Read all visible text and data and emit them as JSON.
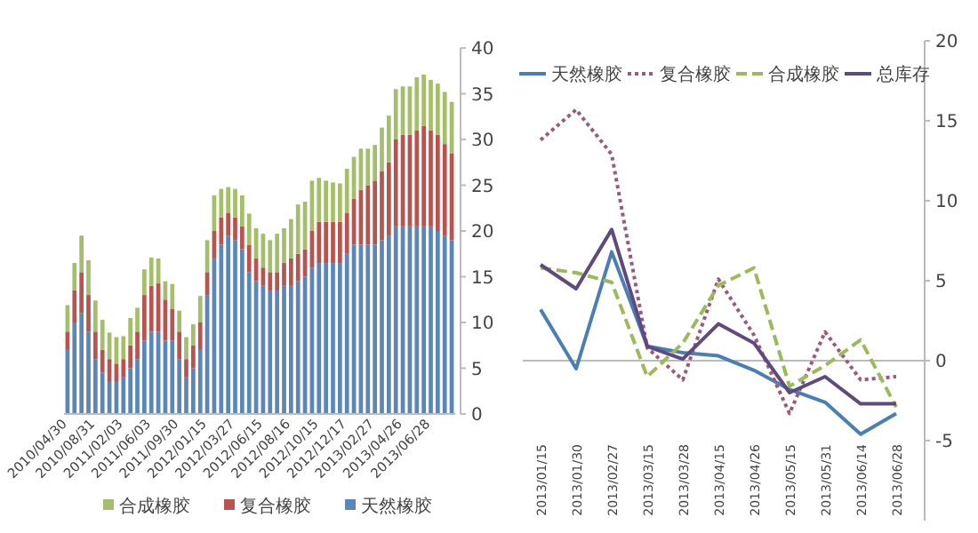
{
  "chart_data": [
    {
      "type": "bar",
      "stacked": true,
      "legend": "bottom",
      "grid": false,
      "categories": [
        "2010/04/30",
        null,
        null,
        null,
        "2010/08/31",
        null,
        null,
        null,
        "2011/02/03",
        null,
        null,
        null,
        "2011/06/03",
        null,
        null,
        null,
        "2011/09/30",
        null,
        null,
        null,
        "2012/01/15",
        null,
        null,
        null,
        "2012/03/27",
        null,
        null,
        null,
        "2012/06/15",
        null,
        null,
        null,
        "2012/08/16",
        null,
        null,
        null,
        "2012/10/15",
        null,
        null,
        null,
        "2012/12/17",
        null,
        null,
        null,
        "2013/02/27",
        null,
        null,
        null,
        "2013/04/26",
        null,
        null,
        null,
        "2013/06/28",
        null,
        null,
        null
      ],
      "series": [
        {
          "name": "天然橡胶",
          "color": "#5b86b8",
          "values": [
            7,
            10,
            11,
            9,
            6,
            4.5,
            3.5,
            3.5,
            4,
            5,
            6,
            8,
            9,
            9,
            8,
            8,
            6,
            4,
            5,
            7,
            13,
            17,
            18.5,
            19.5,
            19,
            18,
            15.5,
            14.5,
            14,
            13.5,
            13.5,
            14,
            14,
            14.5,
            15,
            16,
            16.5,
            16.5,
            16.5,
            16.5,
            17.5,
            18.5,
            18.5,
            18.5,
            18.5,
            19,
            19.5,
            20.5,
            20.5,
            20.5,
            20.5,
            20.5,
            20.5,
            20,
            19.5,
            19
          ]
        },
        {
          "name": "复合橡胶",
          "color": "#b85450",
          "values": [
            2,
            3.5,
            4.5,
            4,
            3,
            2.5,
            2.5,
            2,
            2,
            2.5,
            3,
            5,
            5,
            5.3,
            4.5,
            3.5,
            3,
            2,
            2.5,
            3,
            2.5,
            3,
            3,
            2.5,
            2.5,
            2.5,
            3,
            2.5,
            2,
            2,
            2,
            2.5,
            3,
            3,
            3,
            4,
            4.5,
            4.5,
            4.5,
            4.5,
            4.5,
            5,
            6,
            6.5,
            7,
            7.5,
            8,
            9.5,
            10,
            10,
            10.5,
            11,
            10.5,
            10.5,
            10,
            9.5
          ]
        },
        {
          "name": "合成橡胶",
          "color": "#a3bf6a",
          "values": [
            2.9,
            3,
            4,
            3.8,
            3.4,
            3.3,
            2.9,
            2.9,
            2.5,
            3,
            2.6,
            2.8,
            3.1,
            2.7,
            2,
            2.7,
            2.3,
            2.4,
            2.3,
            2.9,
            3.5,
            3.9,
            3.1,
            2.8,
            3.1,
            3.4,
            3.4,
            3.3,
            3.7,
            3.5,
            4.2,
            3.8,
            4.3,
            5.4,
            5.2,
            5.5,
            4.8,
            4.5,
            4.3,
            4.2,
            4.8,
            4.6,
            4.5,
            4,
            3.9,
            4.8,
            5.1,
            5.5,
            5.3,
            5.3,
            5.8,
            5.6,
            5.5,
            5.6,
            5.7,
            5.6
          ]
        }
      ],
      "ylim": [
        0,
        40
      ],
      "yticks": [
        0,
        5,
        10,
        15,
        20,
        25,
        30,
        35,
        40
      ]
    },
    {
      "type": "line",
      "legend": "top",
      "categories": [
        "2013/01/15",
        "2013/01/30",
        "2013/02/27",
        "2013/03/15",
        "2013/03/28",
        "2013/04/15",
        "2013/04/26",
        "2013/05/15",
        "2013/05/31",
        "2013/06/14",
        "2013/06/28"
      ],
      "series": [
        {
          "name": "天然橡胶",
          "color": "#4a7fb5",
          "line_style": "solid",
          "values": [
            3.2,
            -0.5,
            6.8,
            0.9,
            0.5,
            0.3,
            -0.6,
            -1.8,
            -2.6,
            -4.6,
            -3.3
          ]
        },
        {
          "name": "复合橡胶",
          "color": "#9c5a7a",
          "line_style": "dotted",
          "values": [
            13.8,
            15.7,
            12.9,
            0.8,
            -1.2,
            5.1,
            1.6,
            -3.3,
            1.8,
            -1.2,
            -1
          ]
        },
        {
          "name": "合成橡胶",
          "color": "#9bbb59",
          "line_style": "dashed",
          "values": [
            5.8,
            5.5,
            4.9,
            -1,
            1.1,
            4.7,
            5.8,
            -1.6,
            -0.3,
            1.3,
            -2.9
          ]
        },
        {
          "name": "总库存",
          "color": "#5f4a7e",
          "line_style": "solid",
          "values": [
            6,
            4.5,
            8.2,
            0.9,
            0.1,
            2.3,
            1.1,
            -2,
            -1,
            -2.7,
            -2.7
          ]
        }
      ],
      "ylim": [
        -10,
        20
      ],
      "yticks": [
        -5,
        0,
        5,
        10,
        15,
        20
      ],
      "ref_lines": [
        {
          "axis": "y",
          "value": 0,
          "color": "#bbbbbb"
        }
      ]
    }
  ]
}
